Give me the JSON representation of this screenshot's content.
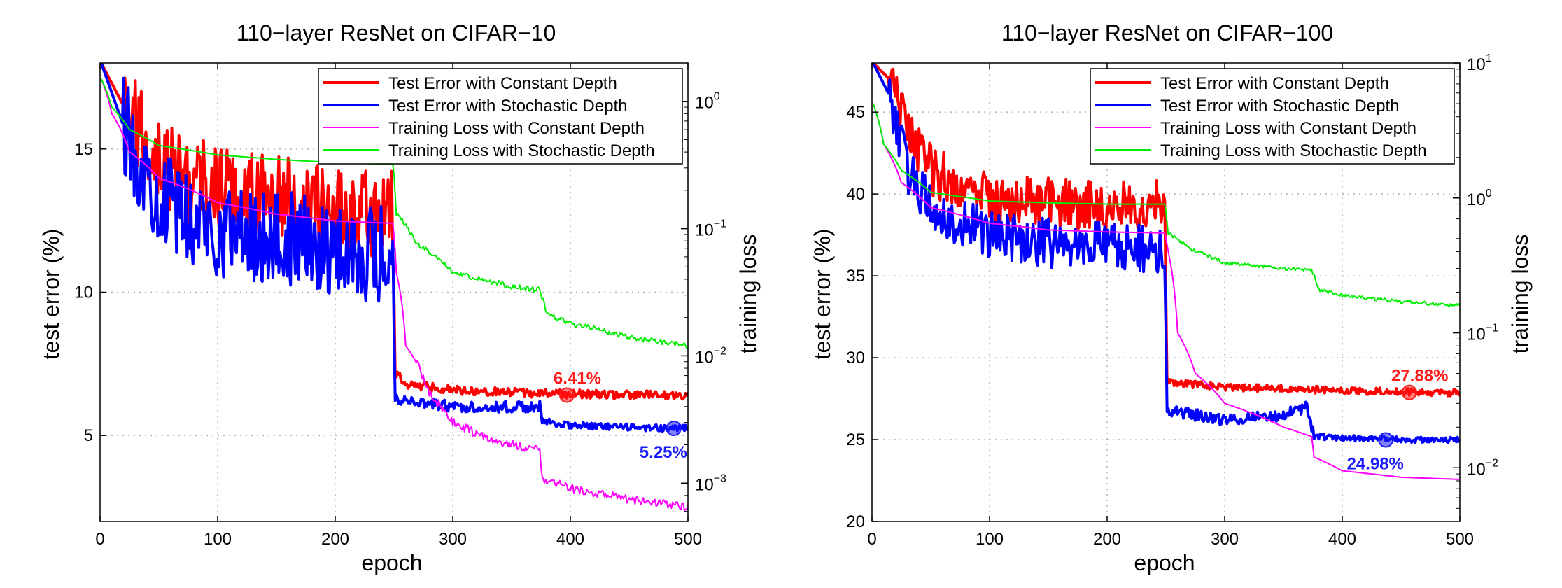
{
  "chart_data": [
    {
      "type": "line",
      "title": "110−layer ResNet on CIFAR−10",
      "xlabel": "epoch",
      "ylabel": "test error (%)",
      "y2label": "training loss",
      "xlim": [
        0,
        500
      ],
      "ylim": [
        2,
        18
      ],
      "y2lim": [
        0.0005,
        2
      ],
      "y2scale": "log",
      "grid": true,
      "legend_position": "top-right",
      "x_ticks": [
        "0",
        "100",
        "200",
        "300",
        "400",
        "500"
      ],
      "y_ticks": [
        "5",
        "10",
        "15"
      ],
      "y2_ticks": [
        {
          "base": "10",
          "exp": "0"
        },
        {
          "base": "10",
          "exp": "−1"
        },
        {
          "base": "10",
          "exp": "−2"
        },
        {
          "base": "10",
          "exp": "−3"
        }
      ],
      "series": [
        {
          "name": "Test Error with Constant Depth",
          "axis": "left",
          "color": "#ff0000",
          "width": 4,
          "points": [
            [
              1,
              18
            ],
            [
              20,
              16.5
            ],
            [
              40,
              15.2
            ],
            [
              60,
              14.2
            ],
            [
              80,
              13.8
            ],
            [
              100,
              13.6
            ],
            [
              130,
              13.4
            ],
            [
              160,
              13.2
            ],
            [
              190,
              13.0
            ],
            [
              220,
              12.8
            ],
            [
              249,
              12.7
            ],
            [
              251,
              7.2
            ],
            [
              260,
              6.8
            ],
            [
              300,
              6.6
            ],
            [
              350,
              6.5
            ],
            [
              400,
              6.45
            ],
            [
              450,
              6.42
            ],
            [
              500,
              6.41
            ]
          ],
          "noise": [
            [
              20,
              249,
              1.6
            ],
            [
              251,
              500,
              0.15
            ]
          ]
        },
        {
          "name": "Test Error with Stochastic Depth",
          "axis": "left",
          "color": "#0000ff",
          "width": 4,
          "points": [
            [
              1,
              18
            ],
            [
              20,
              15.8
            ],
            [
              40,
              14.0
            ],
            [
              60,
              13.0
            ],
            [
              80,
              12.5
            ],
            [
              100,
              12.2
            ],
            [
              130,
              12.0
            ],
            [
              160,
              11.8
            ],
            [
              190,
              11.6
            ],
            [
              220,
              11.4
            ],
            [
              249,
              11.3
            ],
            [
              251,
              6.3
            ],
            [
              300,
              6.0
            ],
            [
              374,
              6.0
            ],
            [
              376,
              5.5
            ],
            [
              400,
              5.35
            ],
            [
              450,
              5.28
            ],
            [
              500,
              5.25
            ]
          ],
          "noise": [
            [
              20,
              249,
              1.7
            ],
            [
              251,
              375,
              0.2
            ],
            [
              375,
              500,
              0.12
            ]
          ]
        },
        {
          "name": "Training Loss with Constant Depth",
          "axis": "right",
          "color": "#ff00ff",
          "width": 2,
          "points": [
            [
              1,
              1.5
            ],
            [
              10,
              0.8
            ],
            [
              25,
              0.4
            ],
            [
              50,
              0.25
            ],
            [
              100,
              0.16
            ],
            [
              150,
              0.13
            ],
            [
              200,
              0.115
            ],
            [
              249,
              0.11
            ],
            [
              252,
              0.045
            ],
            [
              260,
              0.012
            ],
            [
              280,
              0.005
            ],
            [
              300,
              0.003
            ],
            [
              330,
              0.0022
            ],
            [
              374,
              0.0018
            ],
            [
              376,
              0.0011
            ],
            [
              400,
              0.0009
            ],
            [
              450,
              0.00075
            ],
            [
              500,
              0.00065
            ]
          ],
          "noise": [
            [
              270,
              500,
              0.08
            ]
          ]
        },
        {
          "name": "Training Loss with Stochastic Depth",
          "axis": "right",
          "color": "#00ee00",
          "width": 2,
          "points": [
            [
              1,
              1.5
            ],
            [
              10,
              0.9
            ],
            [
              25,
              0.6
            ],
            [
              50,
              0.45
            ],
            [
              100,
              0.38
            ],
            [
              150,
              0.35
            ],
            [
              200,
              0.33
            ],
            [
              249,
              0.32
            ],
            [
              252,
              0.13
            ],
            [
              270,
              0.075
            ],
            [
              300,
              0.045
            ],
            [
              350,
              0.035
            ],
            [
              374,
              0.033
            ],
            [
              380,
              0.021
            ],
            [
              400,
              0.018
            ],
            [
              450,
              0.014
            ],
            [
              500,
              0.012
            ]
          ],
          "noise": [
            [
              250,
              500,
              0.05
            ]
          ]
        }
      ],
      "annotations": [
        {
          "text": "6.41%",
          "color": "#ff1a1a",
          "x": 397,
          "y": 6.41,
          "anchor": "above"
        },
        {
          "text": "5.25%",
          "color": "#1a1aff",
          "x": 488,
          "y": 5.25,
          "anchor": "below"
        }
      ]
    },
    {
      "type": "line",
      "title": "110−layer ResNet on CIFAR−100",
      "xlabel": "epoch",
      "ylabel": "test error (%)",
      "y2label": "training loss",
      "xlim": [
        0,
        500
      ],
      "ylim": [
        20,
        48
      ],
      "y2lim": [
        0.004,
        10
      ],
      "y2scale": "log",
      "grid": true,
      "legend_position": "top-right",
      "x_ticks": [
        "0",
        "100",
        "200",
        "300",
        "400",
        "500"
      ],
      "y_ticks": [
        "20",
        "25",
        "30",
        "35",
        "40",
        "45"
      ],
      "y2_ticks": [
        {
          "base": "10",
          "exp": "1"
        },
        {
          "base": "10",
          "exp": "0"
        },
        {
          "base": "10",
          "exp": "−1"
        },
        {
          "base": "10",
          "exp": "−2"
        }
      ],
      "series": [
        {
          "name": "Test Error with Constant Depth",
          "axis": "left",
          "color": "#ff0000",
          "width": 4,
          "points": [
            [
              1,
              48
            ],
            [
              15,
              47
            ],
            [
              30,
              44
            ],
            [
              50,
              41.5
            ],
            [
              80,
              40.2
            ],
            [
              110,
              39.6
            ],
            [
              150,
              39.5
            ],
            [
              200,
              39.3
            ],
            [
              249,
              39.2
            ],
            [
              251,
              28.5
            ],
            [
              300,
              28.2
            ],
            [
              400,
              28.0
            ],
            [
              450,
              27.9
            ],
            [
              500,
              27.88
            ]
          ],
          "noise": [
            [
              15,
              249,
              1.6
            ],
            [
              251,
              500,
              0.22
            ]
          ]
        },
        {
          "name": "Test Error with Stochastic Depth",
          "axis": "left",
          "color": "#0000ff",
          "width": 4,
          "points": [
            [
              1,
              48
            ],
            [
              15,
              46
            ],
            [
              30,
              41.5
            ],
            [
              50,
              39.2
            ],
            [
              80,
              38.0
            ],
            [
              110,
              37.4
            ],
            [
              150,
              37.0
            ],
            [
              200,
              36.8
            ],
            [
              249,
              36.5
            ],
            [
              251,
              26.8
            ],
            [
              300,
              26.2
            ],
            [
              350,
              26.5
            ],
            [
              370,
              27.0
            ],
            [
              376,
              25.2
            ],
            [
              400,
              25.1
            ],
            [
              450,
              25.0
            ],
            [
              500,
              24.98
            ]
          ],
          "noise": [
            [
              15,
              249,
              1.5
            ],
            [
              251,
              375,
              0.35
            ],
            [
              376,
              500,
              0.18
            ]
          ]
        },
        {
          "name": "Training Loss with Constant Depth",
          "axis": "right",
          "color": "#ff00ff",
          "width": 2,
          "points": [
            [
              1,
              5
            ],
            [
              10,
              2.5
            ],
            [
              25,
              1.3
            ],
            [
              50,
              0.85
            ],
            [
              100,
              0.65
            ],
            [
              150,
              0.58
            ],
            [
              200,
              0.56
            ],
            [
              249,
              0.55
            ],
            [
              252,
              0.4
            ],
            [
              260,
              0.1
            ],
            [
              275,
              0.05
            ],
            [
              300,
              0.03
            ],
            [
              350,
              0.02
            ],
            [
              374,
              0.017
            ],
            [
              376,
              0.012
            ],
            [
              400,
              0.0095
            ],
            [
              450,
              0.0085
            ],
            [
              500,
              0.0082
            ]
          ]
        },
        {
          "name": "Training Loss with Stochastic Depth",
          "axis": "right",
          "color": "#00ee00",
          "width": 2,
          "points": [
            [
              1,
              5
            ],
            [
              10,
              2.5
            ],
            [
              25,
              1.6
            ],
            [
              50,
              1.1
            ],
            [
              100,
              0.95
            ],
            [
              150,
              0.92
            ],
            [
              200,
              0.9
            ],
            [
              249,
              0.9
            ],
            [
              252,
              0.55
            ],
            [
              270,
              0.42
            ],
            [
              300,
              0.33
            ],
            [
              350,
              0.3
            ],
            [
              374,
              0.29
            ],
            [
              380,
              0.21
            ],
            [
              400,
              0.19
            ],
            [
              450,
              0.17
            ],
            [
              500,
              0.16
            ]
          ],
          "noise": [
            [
              250,
              500,
              0.03
            ]
          ]
        }
      ],
      "annotations": [
        {
          "text": "27.88%",
          "color": "#ff1a1a",
          "x": 457,
          "y": 27.88,
          "anchor": "above"
        },
        {
          "text": "24.98%",
          "color": "#1a1aff",
          "x": 437,
          "y": 24.98,
          "anchor": "below"
        }
      ]
    }
  ]
}
